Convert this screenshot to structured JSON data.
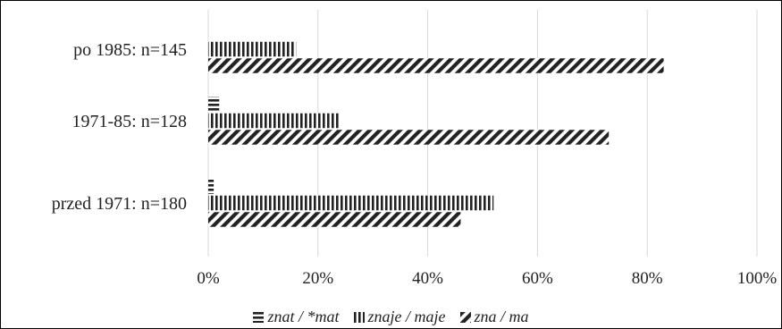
{
  "chart_data": {
    "type": "bar",
    "orientation": "horizontal",
    "categories": [
      "po 1985: n=145",
      "1971-85: n=128",
      "przed 1971: n=180"
    ],
    "series": [
      {
        "name": "znat / *mat",
        "values": [
          0,
          2,
          1
        ],
        "pattern": "horizontal-stripes",
        "color": "#222222"
      },
      {
        "name": "znaje / maje",
        "values": [
          16,
          24,
          52
        ],
        "pattern": "vertical-stripes",
        "color": "#222222"
      },
      {
        "name": "zna / ma",
        "values": [
          83,
          73,
          46
        ],
        "pattern": "diagonal-stripes",
        "color": "#222222"
      }
    ],
    "xlim": [
      0,
      100
    ],
    "xticks": [
      "0%",
      "20%",
      "40%",
      "60%",
      "80%",
      "100%"
    ],
    "grid": true,
    "legend_position": "bottom"
  }
}
